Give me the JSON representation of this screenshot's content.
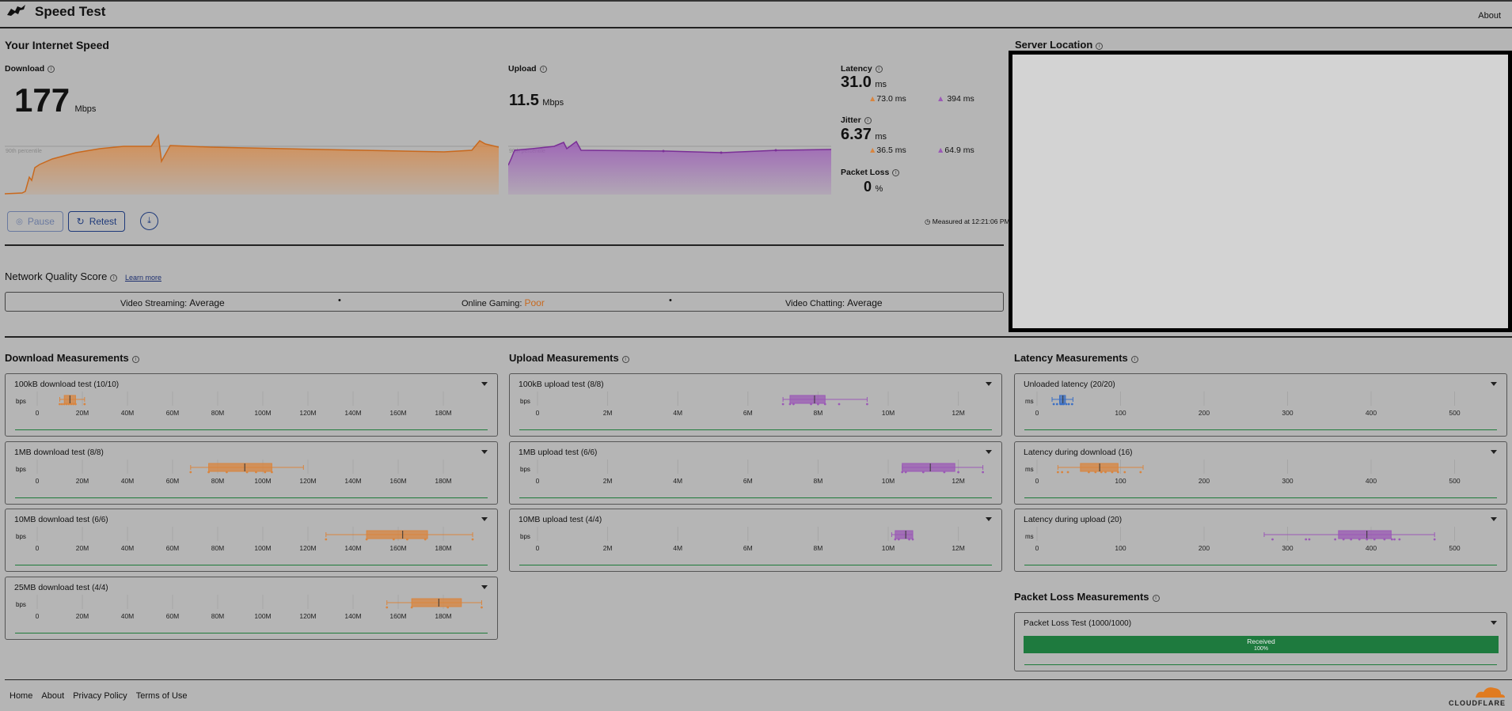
{
  "header": {
    "title": "Speed Test",
    "about": "About"
  },
  "speed": {
    "section_title": "Your Internet Speed",
    "download_label": "Download",
    "download_value": "177",
    "download_unit": "Mbps",
    "upload_label": "Upload",
    "upload_value": "11.5",
    "upload_unit": "Mbps",
    "percentile_label": "90th percentile",
    "latency_label": "Latency",
    "latency_value": "31.0",
    "latency_unit": "ms",
    "latency_down": "73.0 ms",
    "latency_up": "394 ms",
    "jitter_label": "Jitter",
    "jitter_value": "6.37",
    "jitter_unit": "ms",
    "jitter_down": "36.5 ms",
    "jitter_up": "64.9 ms",
    "packet_loss_label": "Packet Loss",
    "packet_loss_value": "0",
    "packet_loss_unit": "%",
    "pause_label": "Pause",
    "retest_label": "Retest",
    "measured_at": "Measured at 12:21:06 PM"
  },
  "server": {
    "title": "Server Location"
  },
  "quality": {
    "title": "Network Quality Score",
    "learn_more": "Learn more",
    "items": [
      {
        "name": "Video Streaming:",
        "value": "Average"
      },
      {
        "name": "Online Gaming:",
        "value": "Poor"
      },
      {
        "name": "Video Chatting:",
        "value": "Average"
      }
    ]
  },
  "colors": {
    "download": "#d9853f",
    "upload": "#9b59b6",
    "latency": "#3b6fc4",
    "received": "#1e7a3e"
  },
  "download_measurements": {
    "title": "Download Measurements",
    "unit": "bps",
    "ticks": [
      "0",
      "20M",
      "40M",
      "60M",
      "80M",
      "100M",
      "120M",
      "140M",
      "160M",
      "180M"
    ],
    "tests": [
      {
        "label": "100kB download test",
        "count": "(10/10)",
        "min": 10,
        "q1": 12,
        "median": 14.5,
        "q3": 17,
        "max": 21,
        "points": [
          10,
          11,
          12,
          13,
          14,
          15,
          16,
          17,
          21
        ]
      },
      {
        "label": "1MB download test",
        "count": "(8/8)",
        "min": 68,
        "q1": 76,
        "median": 92,
        "q3": 104,
        "max": 118,
        "points": [
          68,
          76,
          84,
          93,
          97,
          101,
          104
        ]
      },
      {
        "label": "10MB download test",
        "count": "(6/6)",
        "min": 128,
        "q1": 146,
        "median": 162,
        "q3": 173,
        "max": 193,
        "points": [
          128,
          146,
          158,
          164,
          172,
          193
        ]
      },
      {
        "label": "25MB download test",
        "count": "(4/4)",
        "min": 155,
        "q1": 166,
        "median": 178,
        "q3": 188,
        "max": 197,
        "points": [
          155,
          166,
          182,
          197
        ]
      }
    ]
  },
  "upload_measurements": {
    "title": "Upload Measurements",
    "unit": "bps",
    "ticks": [
      "0",
      "2M",
      "4M",
      "6M",
      "8M",
      "10M",
      "12M"
    ],
    "tests": [
      {
        "label": "100kB upload test",
        "count": "(8/8)",
        "min": 7.0,
        "q1": 7.2,
        "median": 7.9,
        "q3": 8.2,
        "max": 9.4,
        "points": [
          7.0,
          7.2,
          7.3,
          7.8,
          8.0,
          8.2,
          8.6,
          9.4
        ]
      },
      {
        "label": "1MB upload test",
        "count": "(6/6)",
        "min": 10.4,
        "q1": 10.4,
        "median": 11.2,
        "q3": 11.9,
        "max": 12.7,
        "points": [
          10.4,
          10.5,
          11.0,
          11.6,
          12.0,
          12.7
        ]
      },
      {
        "label": "10MB upload test",
        "count": "(4/4)",
        "min": 10.1,
        "q1": 10.2,
        "median": 10.5,
        "q3": 10.7,
        "max": 10.7,
        "points": [
          10.2,
          10.3,
          10.6,
          10.7
        ]
      }
    ]
  },
  "latency_measurements": {
    "title": "Latency Measurements",
    "unit": "ms",
    "ticks": [
      "0",
      "100",
      "200",
      "300",
      "400",
      "500"
    ],
    "tests": [
      {
        "label": "Unloaded latency",
        "count": "(20/20)",
        "min": 18,
        "q1": 27,
        "median": 31,
        "q3": 34,
        "max": 43,
        "points": [
          20,
          24,
          28,
          30,
          32,
          35,
          38,
          42
        ]
      },
      {
        "label": "Latency during download",
        "count": "(16)",
        "min": 25,
        "q1": 52,
        "median": 75,
        "q3": 97,
        "max": 127,
        "points": [
          25,
          30,
          37,
          62,
          70,
          77,
          82,
          90,
          97,
          105,
          124
        ]
      },
      {
        "label": "Latency during upload",
        "count": "(20)",
        "min": 272,
        "q1": 361,
        "median": 395,
        "q3": 424,
        "max": 476,
        "points": [
          282,
          322,
          326,
          357,
          367,
          376,
          386,
          395,
          404,
          416,
          425,
          428,
          434,
          476
        ]
      }
    ]
  },
  "packet_loss": {
    "title": "Packet Loss Measurements",
    "test_label": "Packet Loss Test",
    "test_count": "(1000/1000)",
    "received_label": "Received",
    "received_pct": "100%"
  },
  "footer": {
    "home": "Home",
    "about": "About",
    "privacy": "Privacy Policy",
    "terms": "Terms of Use",
    "brand": "CLOUDFLARE"
  }
}
